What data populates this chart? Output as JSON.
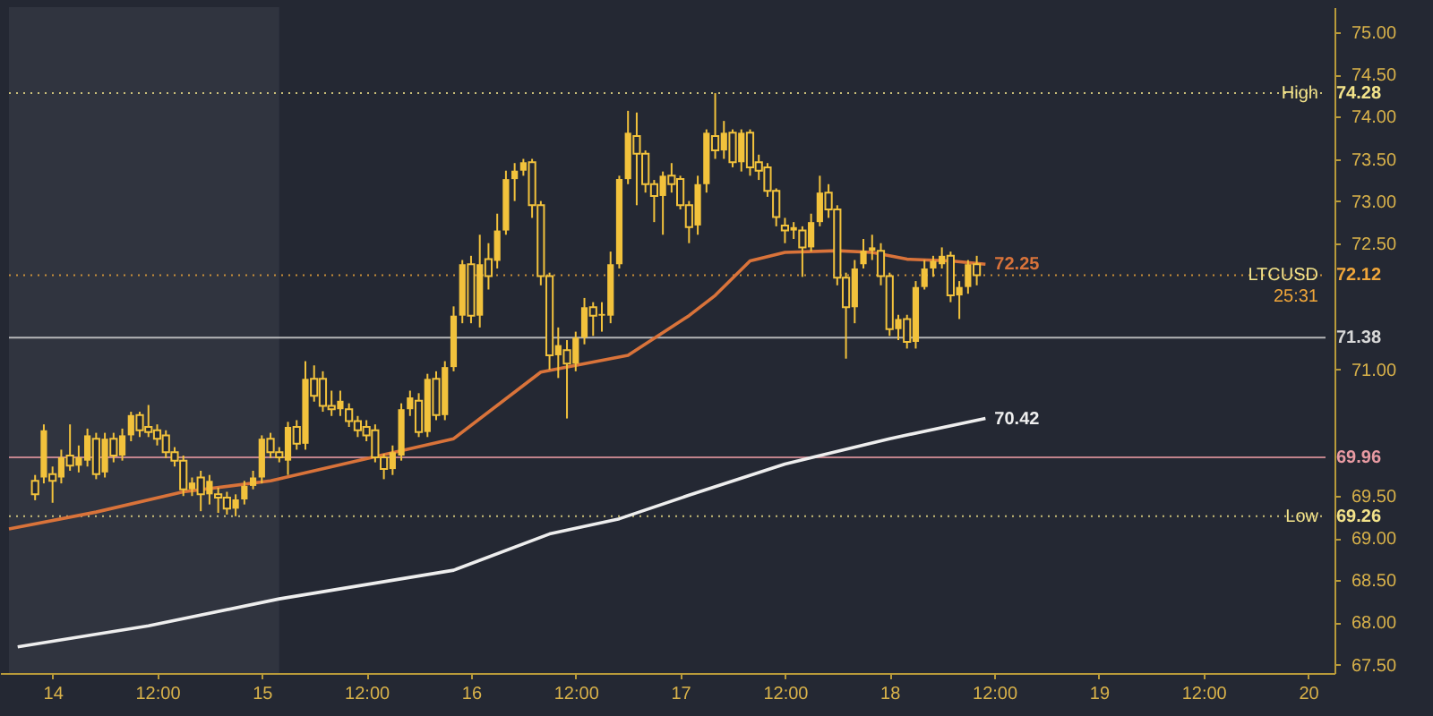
{
  "chart_data": {
    "type": "candlestick",
    "xlim": [
      "--06-13T19:00",
      "--06-20T02:00"
    ],
    "xticks": [
      {
        "value": "--06-14",
        "label": "14"
      },
      {
        "value": "--06-14T12:00",
        "label": "12:00"
      },
      {
        "value": "--06-15",
        "label": "15"
      },
      {
        "value": "--06-15T12:00",
        "label": "12:00"
      },
      {
        "value": "--06-16",
        "label": "16"
      },
      {
        "value": "--06-16T12:00",
        "label": "12:00"
      },
      {
        "value": "--06-17",
        "label": "17"
      },
      {
        "value": "--06-17T12:00",
        "label": "12:00"
      },
      {
        "value": "--06-18",
        "label": "18"
      },
      {
        "value": "--06-18T12:00",
        "label": "12:00"
      },
      {
        "value": "--06-19",
        "label": "19"
      },
      {
        "value": "--06-19T12:00",
        "label": "12:00"
      },
      {
        "value": "--06-20",
        "label": "20"
      }
    ],
    "ylim": [
      67.4,
      75.3
    ],
    "yticks": [
      {
        "value": 67.5,
        "label": "67.50"
      },
      {
        "value": 68,
        "label": "68.00"
      },
      {
        "value": 68.5,
        "label": "68.50"
      },
      {
        "value": 69,
        "label": "69.00"
      },
      {
        "value": 69.5,
        "label": "69.50"
      },
      {
        "value": 71,
        "label": "71.00"
      },
      {
        "value": 72.5,
        "label": "72.50"
      },
      {
        "value": 73,
        "label": "73.00"
      },
      {
        "value": 73.5,
        "label": "73.50"
      },
      {
        "value": 74,
        "label": "74.00"
      },
      {
        "value": 74.5,
        "label": "74.50"
      },
      {
        "value": 75,
        "label": "75.00"
      }
    ],
    "bands": [
      {
        "axis": "x",
        "from": "--06-13T19:00",
        "to": "--06-15T02:00",
        "color": "#30343f"
      }
    ],
    "ref_lines": [
      {
        "axis": "y",
        "value": 74.28,
        "label": "74.28",
        "color": "#f3e38a",
        "line_style": "dotted"
      },
      {
        "axis": "y",
        "value": 69.26,
        "label": "69.26",
        "color": "#f3e38a",
        "line_style": "dotted"
      },
      {
        "axis": "y",
        "value": 72.12,
        "label": "72.12",
        "color": "#f0a63a",
        "line_style": "dotted"
      },
      {
        "axis": "y",
        "value": 69.96,
        "label": "69.96",
        "color": "#e89aa2",
        "line_style": "solid"
      },
      {
        "axis": "y",
        "value": 71.38,
        "label": "71.38",
        "color": "#d9d9d9",
        "line_style": "solid"
      }
    ],
    "annotations": [
      {
        "text": "High",
        "y": 74.28
      },
      {
        "text": "Low",
        "y": 69.26
      },
      {
        "text": "LTCUSD",
        "y": 72.12
      },
      "25:31"
    ],
    "series": [
      {
        "type": "line",
        "color": "#d9733a",
        "x": [
          "--06-13T19:00",
          "--06-14T05:00",
          "--06-14T15:00",
          "--06-15T01:00",
          "--06-15T11:00",
          "--06-15T22:00",
          "--06-16T08:00",
          "--06-16T18:00",
          "--06-17T01:00",
          "--06-17T04:00",
          "--06-17T08:00",
          "--06-17T12:00",
          "--06-17T18:00",
          "--06-17T22:00",
          "--06-18T02:00",
          "--06-18T07:00",
          "--06-18T11:00"
        ],
        "values": [
          69.11,
          69.31,
          69.55,
          69.68,
          69.92,
          70.18,
          70.97,
          71.17,
          71.64,
          71.88,
          72.29,
          72.39,
          72.41,
          72.39,
          72.31,
          72.29,
          72.25
        ],
        "value_labels": [
          null,
          null,
          null,
          null,
          null,
          null,
          null,
          null,
          null,
          null,
          null,
          null,
          null,
          null,
          null,
          null,
          "72.25"
        ]
      },
      {
        "type": "line",
        "color": "#eeeeee",
        "x": [
          "--06-13T20:00",
          "--06-14T11:00",
          "--06-15T02:00",
          "--06-15T22:00",
          "--06-16T09:00",
          "--06-16T17:00",
          "--06-17T01:00",
          "--06-17T12:00",
          "--06-18T00:00",
          "--06-18T11:00"
        ],
        "values": [
          67.71,
          67.96,
          68.28,
          68.62,
          69.05,
          69.23,
          69.51,
          69.88,
          70.18,
          70.42
        ],
        "value_labels": [
          null,
          null,
          null,
          null,
          null,
          null,
          null,
          null,
          null,
          "70.42"
        ]
      },
      {
        "color": "#f2c23c",
        "x": [
          "--06-13T22:00",
          "--06-13T23:00",
          "--06-14T00:00",
          "--06-14T01:00",
          "--06-14T02:00",
          "--06-14T03:00",
          "--06-14T04:00",
          "--06-14T05:00",
          "--06-14T06:00",
          "--06-14T07:00",
          "--06-14T08:00",
          "--06-14T09:00",
          "--06-14T10:00",
          "--06-14T11:00",
          "--06-14T12:00",
          "--06-14T13:00",
          "--06-14T14:00",
          "--06-14T15:00",
          "--06-14T16:00",
          "--06-14T17:00",
          "--06-14T18:00",
          "--06-14T19:00",
          "--06-14T20:00",
          "--06-14T21:00",
          "--06-14T22:00",
          "--06-14T23:00",
          "--06-15T00:00",
          "--06-15T01:00",
          "--06-15T02:00",
          "--06-15T03:00",
          "--06-15T04:00",
          "--06-15T05:00",
          "--06-15T06:00",
          "--06-15T07:00",
          "--06-15T08:00",
          "--06-15T09:00",
          "--06-15T10:00",
          "--06-15T11:00",
          "--06-15T12:00",
          "--06-15T13:00",
          "--06-15T14:00",
          "--06-15T15:00",
          "--06-15T16:00",
          "--06-15T17:00",
          "--06-15T18:00",
          "--06-15T19:00",
          "--06-15T20:00",
          "--06-15T21:00",
          "--06-15T22:00",
          "--06-15T23:00",
          "--06-16T00:00",
          "--06-16T01:00",
          "--06-16T02:00",
          "--06-16T03:00",
          "--06-16T04:00",
          "--06-16T05:00",
          "--06-16T06:00",
          "--06-16T07:00",
          "--06-16T08:00",
          "--06-16T09:00",
          "--06-16T10:00",
          "--06-16T11:00",
          "--06-16T12:00",
          "--06-16T13:00",
          "--06-16T14:00",
          "--06-16T15:00",
          "--06-16T16:00",
          "--06-16T17:00",
          "--06-16T18:00",
          "--06-16T19:00",
          "--06-16T20:00",
          "--06-16T21:00",
          "--06-16T22:00",
          "--06-16T23:00",
          "--06-17T00:00",
          "--06-17T01:00",
          "--06-17T02:00",
          "--06-17T03:00",
          "--06-17T04:00",
          "--06-17T05:00",
          "--06-17T06:00",
          "--06-17T07:00",
          "--06-17T08:00",
          "--06-17T09:00",
          "--06-17T10:00",
          "--06-17T11:00",
          "--06-17T12:00",
          "--06-17T13:00",
          "--06-17T14:00",
          "--06-17T15:00",
          "--06-17T16:00",
          "--06-17T17:00",
          "--06-17T18:00",
          "--06-17T19:00",
          "--06-17T20:00",
          "--06-17T21:00",
          "--06-17T22:00",
          "--06-17T23:00",
          "--06-18T00:00",
          "--06-18T01:00",
          "--06-18T02:00",
          "--06-18T03:00",
          "--06-18T04:00",
          "--06-18T05:00",
          "--06-18T06:00",
          "--06-18T07:00",
          "--06-18T08:00",
          "--06-18T09:00",
          "--06-18T10:00"
        ],
        "ohlc": [
          [
            69.68,
            69.75,
            69.45,
            69.52
          ],
          [
            69.72,
            70.35,
            69.65,
            70.28
          ],
          [
            69.76,
            69.85,
            69.42,
            69.68
          ],
          [
            69.72,
            70.05,
            69.65,
            69.96
          ],
          [
            69.98,
            70.35,
            69.8,
            69.86
          ],
          [
            69.86,
            70.1,
            69.78,
            69.96
          ],
          [
            69.92,
            70.3,
            69.85,
            70.22
          ],
          [
            70.18,
            70.25,
            69.7,
            69.76
          ],
          [
            69.78,
            70.25,
            69.72,
            70.18
          ],
          [
            70.18,
            70.25,
            69.9,
            69.98
          ],
          [
            69.98,
            70.3,
            69.92,
            70.22
          ],
          [
            70.22,
            70.5,
            70.15,
            70.46
          ],
          [
            70.46,
            70.5,
            70.2,
            70.28
          ],
          [
            70.32,
            70.58,
            70.2,
            70.26
          ],
          [
            70.28,
            70.35,
            70.1,
            70.18
          ],
          [
            70.22,
            70.28,
            69.95,
            70.02
          ],
          [
            70.02,
            70.08,
            69.85,
            69.92
          ],
          [
            69.92,
            69.98,
            69.5,
            69.58
          ],
          [
            69.58,
            69.72,
            69.5,
            69.66
          ],
          [
            69.72,
            69.8,
            69.32,
            69.52
          ],
          [
            69.52,
            69.75,
            69.4,
            69.68
          ],
          [
            69.52,
            69.6,
            69.3,
            69.48
          ],
          [
            69.48,
            69.55,
            69.28,
            69.35
          ],
          [
            69.35,
            69.52,
            69.26,
            69.46
          ],
          [
            69.46,
            69.68,
            69.4,
            69.62
          ],
          [
            69.62,
            69.8,
            69.58,
            69.72
          ],
          [
            69.72,
            70.22,
            69.65,
            70.18
          ],
          [
            70.18,
            70.25,
            69.95,
            70.02
          ],
          [
            70.02,
            70.08,
            69.9,
            69.96
          ],
          [
            69.92,
            70.38,
            69.75,
            70.32
          ],
          [
            70.32,
            70.4,
            70.05,
            70.12
          ],
          [
            70.12,
            71.1,
            70.05,
            70.89
          ],
          [
            70.89,
            71.05,
            70.62,
            70.69
          ],
          [
            70.89,
            70.98,
            70.5,
            70.57
          ],
          [
            70.57,
            70.75,
            70.45,
            70.53
          ],
          [
            70.53,
            70.75,
            70.45,
            70.63
          ],
          [
            70.53,
            70.6,
            70.32,
            70.39
          ],
          [
            70.39,
            70.45,
            70.2,
            70.28
          ],
          [
            70.32,
            70.4,
            70.15,
            70.22
          ],
          [
            70.28,
            70.35,
            69.9,
            69.96
          ],
          [
            69.96,
            70,
            69.7,
            69.82
          ],
          [
            69.82,
            70.1,
            69.75,
            70.02
          ],
          [
            69.98,
            70.6,
            69.92,
            70.53
          ],
          [
            70.53,
            70.75,
            70.45,
            70.67
          ],
          [
            70.63,
            70.72,
            70.2,
            70.26
          ],
          [
            70.26,
            70.95,
            70.2,
            70.89
          ],
          [
            70.89,
            70.98,
            70.4,
            70.46
          ],
          [
            70.46,
            71.1,
            70.4,
            71.03
          ],
          [
            71.03,
            71.75,
            70.98,
            71.64
          ],
          [
            71.64,
            72.3,
            71.55,
            72.25
          ],
          [
            72.25,
            72.35,
            71.55,
            71.64
          ],
          [
            71.64,
            72.6,
            71.5,
            72.25
          ],
          [
            72.31,
            72.5,
            71.95,
            72.11
          ],
          [
            72.29,
            72.85,
            72.2,
            72.65
          ],
          [
            72.65,
            73.36,
            72.6,
            73.26
          ],
          [
            73.26,
            73.45,
            73,
            73.36
          ],
          [
            73.36,
            73.5,
            73.3,
            73.46
          ],
          [
            73.46,
            73.5,
            72.8,
            72.95
          ],
          [
            72.95,
            73,
            72,
            72.11
          ],
          [
            72.11,
            72.15,
            71,
            71.17
          ],
          [
            71.17,
            71.5,
            70.9,
            71.29
          ],
          [
            71.23,
            71.35,
            70.42,
            71.07
          ],
          [
            71.07,
            71.45,
            70.98,
            71.38
          ],
          [
            71.38,
            71.85,
            71.3,
            71.74
          ],
          [
            71.74,
            71.8,
            71.4,
            71.64
          ],
          [
            71.64,
            71.8,
            71.45,
            71.66
          ],
          [
            71.64,
            72.4,
            71.55,
            72.25
          ],
          [
            72.25,
            73.3,
            72.2,
            73.26
          ],
          [
            73.26,
            74.07,
            73.2,
            73.81
          ],
          [
            73.77,
            74.05,
            72.95,
            73.56
          ],
          [
            73.56,
            73.6,
            73.1,
            73.2
          ],
          [
            73.2,
            73.25,
            72.75,
            73.06
          ],
          [
            73.06,
            73.35,
            72.6,
            73.3
          ],
          [
            73.3,
            73.45,
            73.1,
            73.2
          ],
          [
            73.26,
            73.3,
            72.9,
            72.95
          ],
          [
            72.95,
            73,
            72.5,
            72.69
          ],
          [
            72.71,
            73.3,
            72.6,
            73.2
          ],
          [
            73.2,
            73.85,
            73.1,
            73.81
          ],
          [
            73.77,
            74.28,
            73.5,
            73.6
          ],
          [
            73.6,
            73.95,
            73.5,
            73.81
          ],
          [
            73.81,
            73.85,
            73.4,
            73.46
          ],
          [
            73.46,
            73.85,
            73.35,
            73.81
          ],
          [
            73.81,
            73.85,
            73.3,
            73.4
          ],
          [
            73.46,
            73.55,
            73.25,
            73.36
          ],
          [
            73.4,
            73.45,
            73.05,
            73.12
          ],
          [
            73.12,
            73.15,
            72.7,
            72.81
          ],
          [
            72.71,
            72.8,
            72.5,
            72.65
          ],
          [
            72.65,
            72.75,
            72.55,
            72.69
          ],
          [
            72.65,
            72.7,
            72.1,
            72.45
          ],
          [
            72.45,
            72.85,
            72.4,
            72.75
          ],
          [
            72.75,
            73.3,
            72.7,
            73.1
          ],
          [
            73.1,
            73.2,
            72.8,
            72.9
          ],
          [
            72.9,
            72.95,
            72,
            72.09
          ],
          [
            72.09,
            72.15,
            71.13,
            71.74
          ],
          [
            71.74,
            72.3,
            71.55,
            72.2
          ],
          [
            72.25,
            72.55,
            72.2,
            72.41
          ],
          [
            72.41,
            72.6,
            72.3,
            72.45
          ],
          [
            72.41,
            72.5,
            72,
            72.11
          ],
          [
            72.11,
            72.15,
            71.4,
            71.48
          ],
          [
            71.48,
            71.65,
            71.35,
            71.6
          ],
          [
            71.6,
            71.65,
            71.25,
            71.33
          ],
          [
            71.33,
            72.05,
            71.25,
            71.98
          ],
          [
            71.98,
            72.3,
            71.95,
            72.2
          ],
          [
            72.2,
            72.35,
            72.1,
            72.29
          ],
          [
            72.25,
            72.45,
            72.2,
            72.35
          ],
          [
            72.35,
            72.4,
            71.8,
            71.88
          ],
          [
            71.88,
            72.05,
            71.6,
            71.98
          ],
          [
            71.98,
            72.3,
            71.9,
            72.25
          ],
          [
            72.25,
            72.35,
            72,
            72.12
          ]
        ]
      }
    ]
  }
}
